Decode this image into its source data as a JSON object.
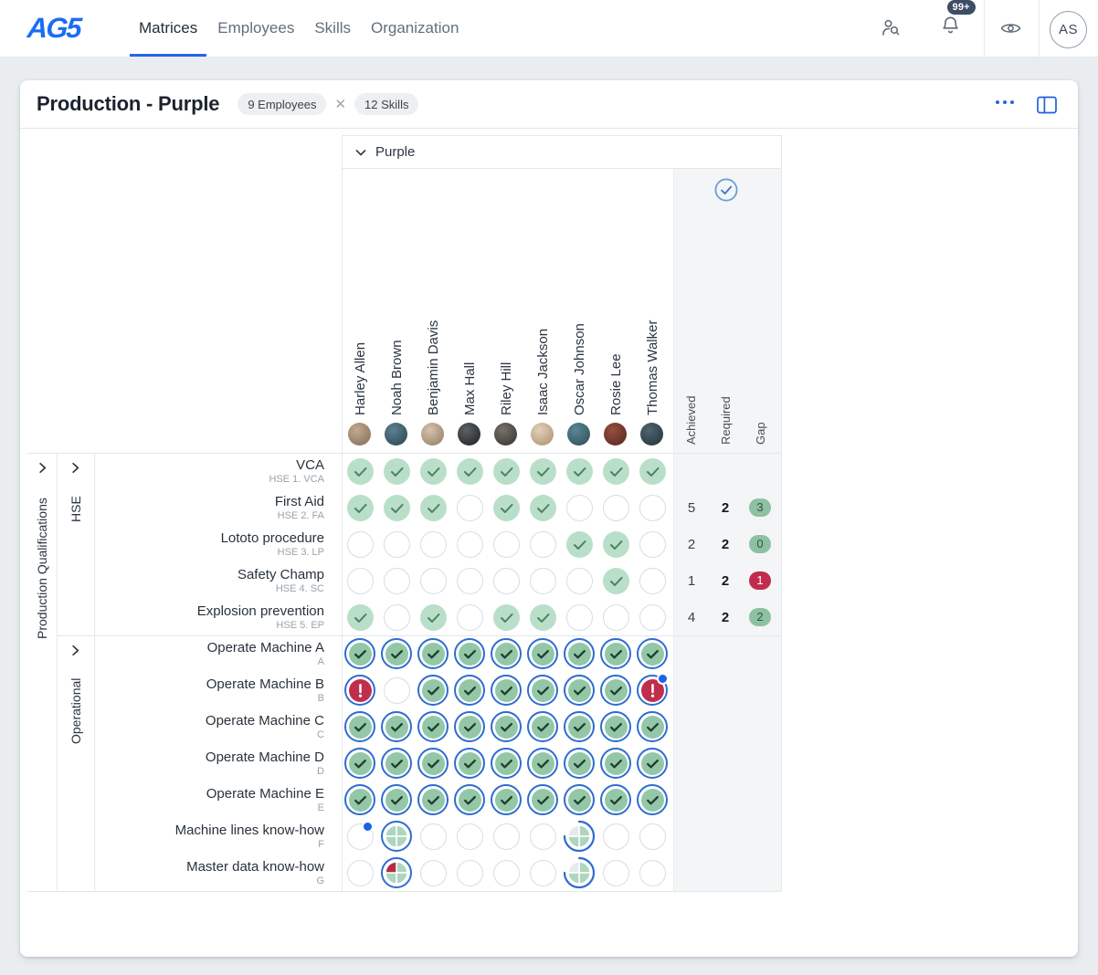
{
  "nav": {
    "logo": "AG5",
    "tabs": [
      {
        "label": "Matrices",
        "active": true
      },
      {
        "label": "Employees",
        "active": false
      },
      {
        "label": "Skills",
        "active": false
      },
      {
        "label": "Organization",
        "active": false
      }
    ],
    "notification_badge": "99+",
    "avatar_initials": "AS"
  },
  "toolbar": {
    "title": "Production - Purple",
    "employees_badge": "9 Employees",
    "badge_separator": "✕",
    "skills_badge": "12 Skills"
  },
  "matrix": {
    "group_header": "Purple",
    "row_group": "Production Qualifications",
    "stats_headers": [
      "Achieved",
      "Required",
      "Gap"
    ],
    "columns": [
      {
        "name": "Harley Allen",
        "avatar": [
          "#c3a98f",
          "#7e6c59"
        ]
      },
      {
        "name": "Noah Brown",
        "avatar": [
          "#5d8193",
          "#2a424d"
        ]
      },
      {
        "name": "Benjamin Davis",
        "avatar": [
          "#d7c3ac",
          "#8f7a62"
        ]
      },
      {
        "name": "Max Hall",
        "avatar": [
          "#5d6165",
          "#1d1f22"
        ]
      },
      {
        "name": "Riley Hill",
        "avatar": [
          "#75716a",
          "#34312c"
        ]
      },
      {
        "name": "Isaac Jackson",
        "avatar": [
          "#e3cfba",
          "#a8906f"
        ]
      },
      {
        "name": "Oscar Johnson",
        "avatar": [
          "#5b8694",
          "#2c4c57"
        ]
      },
      {
        "name": "Rosie Lee",
        "avatar": [
          "#95503f",
          "#54251d"
        ]
      },
      {
        "name": "Thomas Walker",
        "avatar": [
          "#506670",
          "#232f36"
        ]
      }
    ],
    "cell_states_legend": {
      "q": "qualified",
      "e": "not-qualified",
      "c": "certified",
      "x": "certificate-expired",
      "xd": "certificate-expired-with-notification",
      "ed": "not-qualified-with-notification",
      "p4": "in-progress-four-quarters",
      "p4r": "in-progress-expired-quarter",
      "p3": "in-progress-three-quarters"
    },
    "skill_groups": [
      {
        "name": "HSE",
        "skills": [
          {
            "name": "VCA",
            "code": "HSE 1. VCA",
            "cells": [
              "q",
              "q",
              "q",
              "q",
              "q",
              "q",
              "q",
              "q",
              "q"
            ],
            "achieved": "",
            "required": "",
            "gap": null
          },
          {
            "name": "First Aid",
            "code": "HSE 2. FA",
            "cells": [
              "q",
              "q",
              "q",
              "e",
              "q",
              "q",
              "e",
              "e",
              "e"
            ],
            "achieved": "5",
            "required": "2",
            "gap": {
              "value": "3",
              "tone": "green"
            }
          },
          {
            "name": "Lototo procedure",
            "code": "HSE 3. LP",
            "cells": [
              "e",
              "e",
              "e",
              "e",
              "e",
              "e",
              "q",
              "q",
              "e"
            ],
            "achieved": "2",
            "required": "2",
            "gap": {
              "value": "0",
              "tone": "green"
            }
          },
          {
            "name": "Safety Champ",
            "code": "HSE 4. SC",
            "cells": [
              "e",
              "e",
              "e",
              "e",
              "e",
              "e",
              "e",
              "q",
              "e"
            ],
            "achieved": "1",
            "required": "2",
            "gap": {
              "value": "1",
              "tone": "red"
            }
          },
          {
            "name": "Explosion prevention",
            "code": "HSE 5. EP",
            "cells": [
              "q",
              "e",
              "q",
              "e",
              "q",
              "q",
              "e",
              "e",
              "e"
            ],
            "achieved": "4",
            "required": "2",
            "gap": {
              "value": "2",
              "tone": "green"
            }
          }
        ]
      },
      {
        "name": "Operational",
        "skills": [
          {
            "name": "Operate Machine A",
            "code": "A",
            "cells": [
              "c",
              "c",
              "c",
              "c",
              "c",
              "c",
              "c",
              "c",
              "c"
            ],
            "achieved": "",
            "required": "",
            "gap": null
          },
          {
            "name": "Operate Machine B",
            "code": "B",
            "cells": [
              "x",
              "e",
              "c",
              "c",
              "c",
              "c",
              "c",
              "c",
              "xd"
            ],
            "achieved": "",
            "required": "",
            "gap": null
          },
          {
            "name": "Operate Machine C",
            "code": "C",
            "cells": [
              "c",
              "c",
              "c",
              "c",
              "c",
              "c",
              "c",
              "c",
              "c"
            ],
            "achieved": "",
            "required": "",
            "gap": null
          },
          {
            "name": "Operate Machine D",
            "code": "D",
            "cells": [
              "c",
              "c",
              "c",
              "c",
              "c",
              "c",
              "c",
              "c",
              "c"
            ],
            "achieved": "",
            "required": "",
            "gap": null
          },
          {
            "name": "Operate Machine E",
            "code": "E",
            "cells": [
              "c",
              "c",
              "c",
              "c",
              "c",
              "c",
              "c",
              "c",
              "c"
            ],
            "achieved": "",
            "required": "",
            "gap": null
          },
          {
            "name": "Machine lines know-how",
            "code": "F",
            "cells": [
              "ed",
              "p4",
              "e",
              "e",
              "e",
              "e",
              "p3",
              "e",
              "e"
            ],
            "achieved": "",
            "required": "",
            "gap": null
          },
          {
            "name": "Master data know-how",
            "code": "G",
            "cells": [
              "e",
              "p4r",
              "e",
              "e",
              "e",
              "e",
              "p3",
              "e",
              "e"
            ],
            "achieved": "",
            "required": "",
            "gap": null
          }
        ]
      }
    ]
  },
  "icons": {
    "nav": [
      "user-search-icon",
      "bell-icon",
      "eye-icon"
    ],
    "toolbar": [
      "more-dots-icon",
      "panel-toggle-icon"
    ],
    "matrix": [
      "chevron-down-icon",
      "chevron-right-icon",
      "check-circle-icon"
    ]
  },
  "colors": {
    "accent_blue": "#2563eb",
    "ring_blue": "#2e6cd1",
    "qualified_green": "#b9dfc9",
    "certified_green": "#93c7a7",
    "expired_red": "#c02e4d",
    "gap_green": "#8ec0a2",
    "gap_red": "#c22b4e",
    "panel_gray": "#f4f5f6"
  }
}
